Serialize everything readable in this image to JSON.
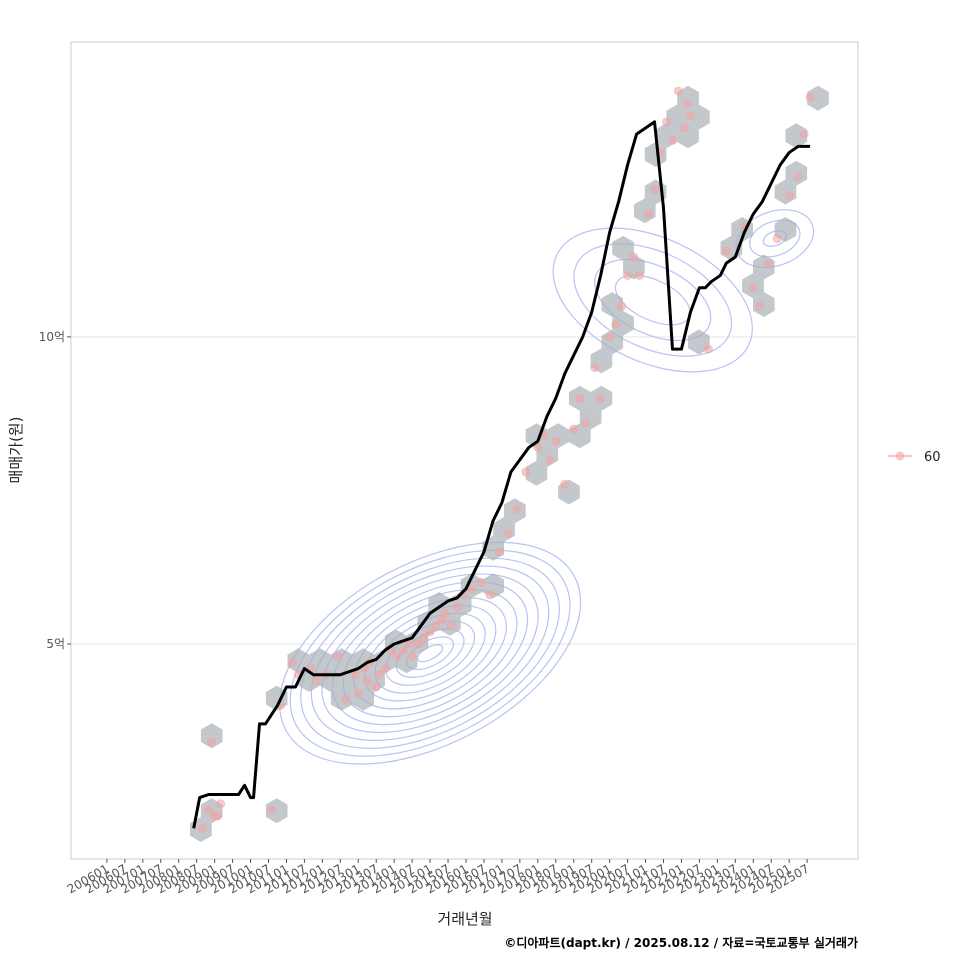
{
  "chart_data": {
    "type": "scatter",
    "title": "",
    "xlabel": "거래년월",
    "ylabel": "매매가(원)",
    "caption": "©디아파트(dapt.kr) / 2025.08.12 / 자료=국토교통부 실거래가",
    "x_ticks": [
      "200601",
      "200607",
      "200701",
      "200707",
      "200801",
      "200807",
      "200901",
      "200907",
      "201001",
      "201007",
      "201101",
      "201107",
      "201201",
      "201207",
      "201301",
      "201307",
      "201401",
      "201407",
      "201501",
      "201507",
      "201601",
      "201607",
      "201701",
      "201707",
      "201801",
      "201807",
      "201901",
      "201907",
      "202001",
      "202007",
      "202101",
      "202107",
      "202201",
      "202207",
      "202301",
      "202307",
      "202401",
      "202407",
      "202501",
      "202507"
    ],
    "xlim": [
      "2005-01",
      "2026-12"
    ],
    "y_unit": "억",
    "y_ticks": [
      {
        "value": 5,
        "label": "5억"
      },
      {
        "value": 10,
        "label": "10억"
      }
    ],
    "ylim": [
      1.5,
      14.8
    ],
    "grid": true,
    "legend": {
      "placement": "right",
      "entries": [
        "60"
      ]
    },
    "colors": {
      "points": "#f4a3a3",
      "hexbin": "#aab0b8",
      "contour": "#a9b8f2",
      "trend": "#000000",
      "grid": "#e6e6e6",
      "panel_border": "#cccccc"
    },
    "series": [
      {
        "name": "60",
        "kind": "points",
        "x": [
          "2008-09",
          "2008-11",
          "2009-01",
          "2009-03",
          "2009-02",
          "2008-12",
          "2010-08",
          "2010-11",
          "2011-03",
          "2011-05",
          "2011-09",
          "2011-11",
          "2012-02",
          "2012-06",
          "2012-09",
          "2012-12",
          "2013-01",
          "2013-03",
          "2013-04",
          "2013-05",
          "2013-07",
          "2013-08",
          "2013-10",
          "2013-12",
          "2014-02",
          "2014-04",
          "2014-06",
          "2014-07",
          "2014-09",
          "2014-11",
          "2015-01",
          "2015-03",
          "2015-05",
          "2015-06",
          "2015-08",
          "2015-10",
          "2015-12",
          "2016-03",
          "2016-06",
          "2016-09",
          "2016-12",
          "2017-03",
          "2017-06",
          "2017-09",
          "2018-01",
          "2018-03",
          "2018-05",
          "2018-07",
          "2018-10",
          "2019-01",
          "2019-03",
          "2019-05",
          "2019-08",
          "2019-10",
          "2020-01",
          "2020-03",
          "2020-05",
          "2020-07",
          "2020-09",
          "2020-11",
          "2021-02",
          "2021-04",
          "2021-06",
          "2021-08",
          "2021-10",
          "2021-12",
          "2022-02",
          "2022-03",
          "2022-04",
          "2022-10",
          "2023-04",
          "2023-10",
          "2024-01",
          "2024-03",
          "2024-06",
          "2024-09",
          "2025-01",
          "2025-04",
          "2025-06",
          "2025-08"
        ],
        "y": [
          2.0,
          2.3,
          2.2,
          2.4,
          2.2,
          3.4,
          2.3,
          4.0,
          4.7,
          4.5,
          4.6,
          4.4,
          4.5,
          4.8,
          4.1,
          4.5,
          4.2,
          4.6,
          4.4,
          4.7,
          4.3,
          4.5,
          4.6,
          4.9,
          4.8,
          4.9,
          5.0,
          4.8,
          5.0,
          5.1,
          5.2,
          5.3,
          5.4,
          5.5,
          5.3,
          5.6,
          5.8,
          5.9,
          6.0,
          5.8,
          6.5,
          6.8,
          7.2,
          7.8,
          8.2,
          8.4,
          8.0,
          8.3,
          7.6,
          8.5,
          9.0,
          8.6,
          9.5,
          9.0,
          10.0,
          10.2,
          10.5,
          11.0,
          11.3,
          11.0,
          12.0,
          12.4,
          13.0,
          13.5,
          13.2,
          14.0,
          13.4,
          13.8,
          13.6,
          9.8,
          11.4,
          11.8,
          10.8,
          10.5,
          11.2,
          11.6,
          12.3,
          12.6,
          13.3,
          13.9
        ]
      },
      {
        "name": "",
        "kind": "trend",
        "x": [
          "2008-06",
          "2008-08",
          "2008-11",
          "2009-06",
          "2009-09",
          "2009-11",
          "2010-01",
          "2010-02",
          "2010-04",
          "2010-06",
          "2010-10",
          "2011-01",
          "2011-04",
          "2011-07",
          "2011-10",
          "2012-01",
          "2012-04",
          "2012-07",
          "2012-10",
          "2013-01",
          "2013-04",
          "2013-07",
          "2013-10",
          "2014-01",
          "2014-04",
          "2014-07",
          "2014-10",
          "2015-01",
          "2015-04",
          "2015-07",
          "2015-10",
          "2016-01",
          "2016-04",
          "2016-07",
          "2016-10",
          "2017-01",
          "2017-04",
          "2017-07",
          "2017-10",
          "2018-01",
          "2018-04",
          "2018-07",
          "2018-10",
          "2019-01",
          "2019-04",
          "2019-07",
          "2019-10",
          "2020-01",
          "2020-04",
          "2020-07",
          "2020-10",
          "2021-01",
          "2021-04",
          "2021-07",
          "2021-10",
          "2022-01",
          "2022-04",
          "2022-07",
          "2022-09",
          "2022-11",
          "2023-02",
          "2023-04",
          "2023-07",
          "2023-10",
          "2024-01",
          "2024-04",
          "2024-07",
          "2024-10",
          "2025-01",
          "2025-04",
          "2025-08"
        ],
        "y": [
          2.0,
          2.5,
          2.55,
          2.55,
          2.55,
          2.7,
          2.5,
          2.5,
          3.7,
          3.7,
          4.0,
          4.3,
          4.3,
          4.6,
          4.5,
          4.5,
          4.5,
          4.5,
          4.55,
          4.6,
          4.7,
          4.75,
          4.9,
          5.0,
          5.05,
          5.1,
          5.3,
          5.5,
          5.6,
          5.7,
          5.75,
          5.9,
          6.2,
          6.5,
          7.0,
          7.3,
          7.8,
          8.0,
          8.2,
          8.3,
          8.7,
          9.0,
          9.4,
          9.7,
          10.0,
          10.4,
          11.0,
          11.7,
          12.2,
          12.8,
          13.3,
          13.4,
          13.5,
          12.1,
          9.8,
          9.8,
          10.4,
          10.8,
          10.8,
          10.9,
          11.0,
          11.2,
          11.3,
          11.7,
          12.0,
          12.2,
          12.5,
          12.8,
          13.0,
          13.1,
          13.1
        ]
      }
    ]
  }
}
